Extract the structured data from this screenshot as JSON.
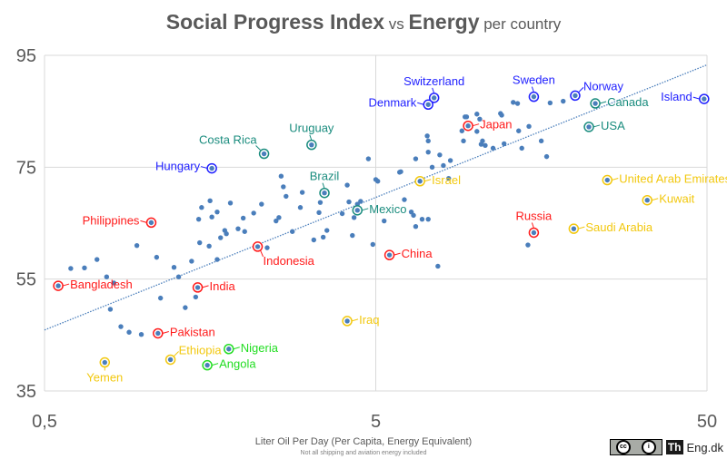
{
  "chart_data": {
    "type": "scatter",
    "title": {
      "parts": [
        {
          "text": "Social Progress Index",
          "style": "big"
        },
        {
          "text": " vs ",
          "style": "small"
        },
        {
          "text": "Energy",
          "style": "big"
        },
        {
          "text": " per country",
          "style": "small"
        }
      ]
    },
    "xlabel": "Liter Oil Per Day (Per Capita, Energy Equivalent)",
    "xnote": "Not all shipping and aviation energy included",
    "ylabel": "",
    "xscale": "log",
    "xlim": [
      0.5,
      50
    ],
    "ylim": [
      35,
      95
    ],
    "xticks": [
      {
        "value": 0.5,
        "label": "0,5"
      },
      {
        "value": 5,
        "label": "5"
      },
      {
        "value": 50,
        "label": "50"
      }
    ],
    "yticks": [
      {
        "value": 95,
        "label": "95"
      },
      {
        "value": 75,
        "label": "75"
      },
      {
        "value": 55,
        "label": "55"
      },
      {
        "value": 35,
        "label": "35"
      }
    ],
    "grid": true,
    "trendline": {
      "style": "dotted",
      "color": "#4a7ebb",
      "start": {
        "x": 0.5,
        "y": 45.9
      },
      "end": {
        "x": 50,
        "y": 93.3
      }
    },
    "point_color": "#4a7ebb",
    "group_colors": {
      "blue": "#1f1fff",
      "teal": "#1a8c7e",
      "red": "#ff1a1a",
      "yellow": "#f2c80f",
      "green": "#22dd22"
    },
    "labeled_points": [
      {
        "name": "Switzerland",
        "x": 7.5,
        "y": 87.4,
        "group": "blue",
        "label_pos": "above"
      },
      {
        "name": "Denmark",
        "x": 7.2,
        "y": 86.2,
        "group": "blue",
        "label_pos": "left"
      },
      {
        "name": "Sweden",
        "x": 15.0,
        "y": 87.6,
        "group": "blue",
        "label_pos": "above"
      },
      {
        "name": "Norway",
        "x": 20.0,
        "y": 87.8,
        "group": "blue",
        "label_pos": "above-right"
      },
      {
        "name": "Canada",
        "x": 23.0,
        "y": 86.4,
        "group": "teal",
        "label_pos": "right"
      },
      {
        "name": "Island",
        "x": 49.0,
        "y": 87.2,
        "group": "blue",
        "label_pos": "left"
      },
      {
        "name": "USA",
        "x": 22.0,
        "y": 82.2,
        "group": "teal",
        "label_pos": "right"
      },
      {
        "name": "Japan",
        "x": 9.5,
        "y": 82.4,
        "group": "red",
        "label_pos": "right"
      },
      {
        "name": "Uruguay",
        "x": 3.2,
        "y": 79.0,
        "group": "teal",
        "label_pos": "above"
      },
      {
        "name": "Costa Rica",
        "x": 2.3,
        "y": 77.4,
        "group": "teal",
        "label_pos": "above-left"
      },
      {
        "name": "Hungary",
        "x": 1.6,
        "y": 74.8,
        "group": "blue",
        "label_pos": "left"
      },
      {
        "name": "Brazil",
        "x": 3.5,
        "y": 70.4,
        "group": "teal",
        "label_pos": "above"
      },
      {
        "name": "Mexico",
        "x": 4.4,
        "y": 67.3,
        "group": "teal",
        "label_pos": "right"
      },
      {
        "name": "Israel",
        "x": 6.8,
        "y": 72.5,
        "group": "yellow",
        "label_pos": "right"
      },
      {
        "name": "United Arab Emirates",
        "x": 25.0,
        "y": 72.7,
        "group": "yellow",
        "label_pos": "right"
      },
      {
        "name": "Kuwait",
        "x": 33.0,
        "y": 69.1,
        "group": "yellow",
        "label_pos": "right"
      },
      {
        "name": "Russia",
        "x": 15.0,
        "y": 63.3,
        "group": "red",
        "label_pos": "above"
      },
      {
        "name": "Saudi Arabia",
        "x": 19.8,
        "y": 64.0,
        "group": "yellow",
        "label_pos": "right"
      },
      {
        "name": "Philippines",
        "x": 1.05,
        "y": 65.1,
        "group": "red",
        "label_pos": "left"
      },
      {
        "name": "Indonesia",
        "x": 2.2,
        "y": 60.8,
        "group": "red",
        "label_pos": "below-right"
      },
      {
        "name": "China",
        "x": 5.5,
        "y": 59.3,
        "group": "red",
        "label_pos": "right"
      },
      {
        "name": "Bangladesh",
        "x": 0.55,
        "y": 53.8,
        "group": "red",
        "label_pos": "right"
      },
      {
        "name": "India",
        "x": 1.45,
        "y": 53.5,
        "group": "red",
        "label_pos": "right"
      },
      {
        "name": "Pakistan",
        "x": 1.1,
        "y": 45.3,
        "group": "red",
        "label_pos": "right"
      },
      {
        "name": "Iraq",
        "x": 4.1,
        "y": 47.5,
        "group": "yellow",
        "label_pos": "right"
      },
      {
        "name": "Nigeria",
        "x": 1.8,
        "y": 42.5,
        "group": "green",
        "label_pos": "right"
      },
      {
        "name": "Ethiopia",
        "x": 1.2,
        "y": 40.6,
        "group": "yellow",
        "label_pos": "above-right"
      },
      {
        "name": "Angola",
        "x": 1.55,
        "y": 39.6,
        "group": "green",
        "label_pos": "right"
      },
      {
        "name": "Yemen",
        "x": 0.76,
        "y": 40.1,
        "group": "yellow",
        "label_pos": "below"
      }
    ],
    "unlabeled_points": [
      [
        0.6,
        56.9
      ],
      [
        0.66,
        57.0
      ],
      [
        0.72,
        58.5
      ],
      [
        0.77,
        55.4
      ],
      [
        0.81,
        54.3
      ],
      [
        0.79,
        49.6
      ],
      [
        0.85,
        46.5
      ],
      [
        0.9,
        45.5
      ],
      [
        0.95,
        61.0
      ],
      [
        0.98,
        45.1
      ],
      [
        1.09,
        58.9
      ],
      [
        1.12,
        51.6
      ],
      [
        1.23,
        57.1
      ],
      [
        1.27,
        55.4
      ],
      [
        1.33,
        49.9
      ],
      [
        1.43,
        51.8
      ],
      [
        1.47,
        61.5
      ],
      [
        1.39,
        58.2
      ],
      [
        1.57,
        60.9
      ],
      [
        1.66,
        58.5
      ],
      [
        1.58,
        69.0
      ],
      [
        1.46,
        65.7
      ],
      [
        1.6,
        66.1
      ],
      [
        1.49,
        67.8
      ],
      [
        1.66,
        67.0
      ],
      [
        1.7,
        62.4
      ],
      [
        1.75,
        63.7
      ],
      [
        1.77,
        63.1
      ],
      [
        1.82,
        68.6
      ],
      [
        1.92,
        64.0
      ],
      [
        1.99,
        65.9
      ],
      [
        2.01,
        63.5
      ],
      [
        2.14,
        66.8
      ],
      [
        2.26,
        68.4
      ],
      [
        2.35,
        60.6
      ],
      [
        2.5,
        65.4
      ],
      [
        2.55,
        66.0
      ],
      [
        2.59,
        73.4
      ],
      [
        2.63,
        71.5
      ],
      [
        2.68,
        69.8
      ],
      [
        2.8,
        63.5
      ],
      [
        2.96,
        67.8
      ],
      [
        3.0,
        70.5
      ],
      [
        3.25,
        62.0
      ],
      [
        3.37,
        66.9
      ],
      [
        3.4,
        68.7
      ],
      [
        3.47,
        62.5
      ],
      [
        3.56,
        63.7
      ],
      [
        3.96,
        66.7
      ],
      [
        4.1,
        71.8
      ],
      [
        4.15,
        68.8
      ],
      [
        4.4,
        68.4
      ],
      [
        4.5,
        68.9
      ],
      [
        4.3,
        66.0
      ],
      [
        4.75,
        76.5
      ],
      [
        4.25,
        62.8
      ],
      [
        4.9,
        61.2
      ],
      [
        5.0,
        72.8
      ],
      [
        5.07,
        72.5
      ],
      [
        5.3,
        65.4
      ],
      [
        5.9,
        74.1
      ],
      [
        5.95,
        74.2
      ],
      [
        6.1,
        69.2
      ],
      [
        6.5,
        66.4
      ],
      [
        6.4,
        67.0
      ],
      [
        6.6,
        64.4
      ],
      [
        6.9,
        65.7
      ],
      [
        7.2,
        65.7
      ],
      [
        7.4,
        75.0
      ],
      [
        7.7,
        57.3
      ],
      [
        6.6,
        76.5
      ],
      [
        7.2,
        77.7
      ],
      [
        7.2,
        79.7
      ],
      [
        7.15,
        80.6
      ],
      [
        7.8,
        77.2
      ],
      [
        8.0,
        75.3
      ],
      [
        8.3,
        73.0
      ],
      [
        8.4,
        76.2
      ],
      [
        9.2,
        79.7
      ],
      [
        9.1,
        81.5
      ],
      [
        9.3,
        84.0
      ],
      [
        9.4,
        84.0
      ],
      [
        10.1,
        81.4
      ],
      [
        10.1,
        84.5
      ],
      [
        10.3,
        83.6
      ],
      [
        10.5,
        79.7
      ],
      [
        11.9,
        84.6
      ],
      [
        12.0,
        84.3
      ],
      [
        10.4,
        79.1
      ],
      [
        10.7,
        78.9
      ],
      [
        11.3,
        78.4
      ],
      [
        12.2,
        79.2
      ],
      [
        13.5,
        81.5
      ],
      [
        14.5,
        82.3
      ],
      [
        13.8,
        78.4
      ],
      [
        15.8,
        79.7
      ],
      [
        16.4,
        76.9
      ],
      [
        13.0,
        86.6
      ],
      [
        13.4,
        86.4
      ],
      [
        16.8,
        86.5
      ],
      [
        18.4,
        86.8
      ],
      [
        14.4,
        61.1
      ]
    ]
  },
  "branding": {
    "license": "CC BY",
    "logo_short": "Th",
    "logo_text": "Eng.dk"
  }
}
